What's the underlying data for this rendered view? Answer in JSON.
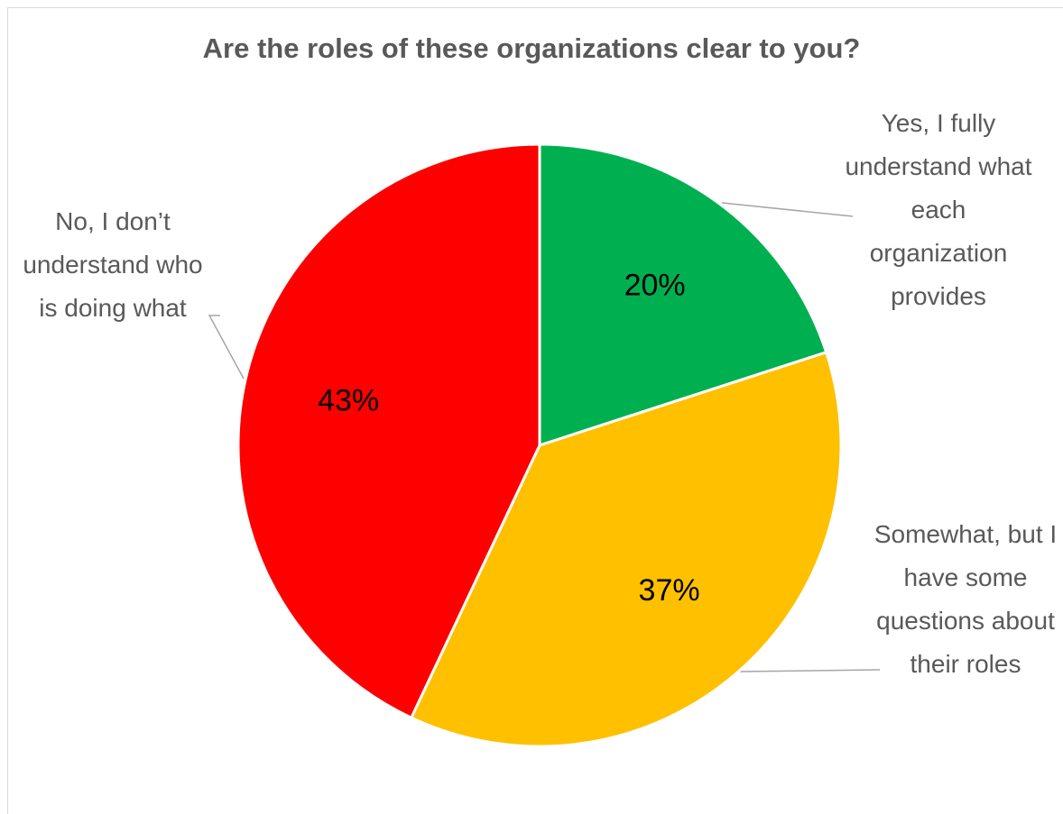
{
  "chart_data": {
    "type": "pie",
    "title": "Are the roles of these organizations clear to you?",
    "categories": [
      "Yes, I fully understand what each organization provides",
      "Somewhat, but I have some questions about their roles",
      "No, I don’t understand who is doing what"
    ],
    "values": [
      20,
      37,
      43
    ],
    "value_labels": [
      "20%",
      "37%",
      "43%"
    ],
    "colors": [
      "#00b050",
      "#ffc000",
      "#ff0000"
    ]
  }
}
